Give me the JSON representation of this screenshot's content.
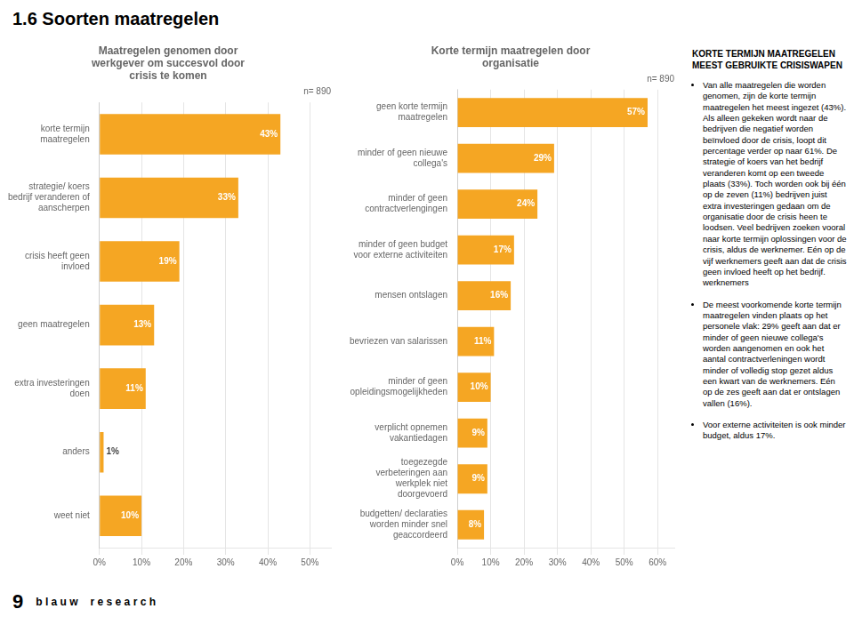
{
  "title": "1.6 Soorten maatregelen",
  "annotations": [
    "KORTE TERMIJN MAATREGELEN\nMEEST GEBRUIKTE CRISISWAPEN",
    "Van alle maatregelen die worden genomen, zijn de korte termijn maatregelen het meest ingezet (43%). Als alleen gekeken wordt naar de bedrijven die negatief worden beïnvloed door de crisis, loopt dit percentage verder op naar 61%. De strategie of koers van het bedrijf veranderen komt op een tweede plaats (33%). Toch worden ook bij één op de zeven (11%) bedrijven juist extra investeringen gedaan om de organisatie door de crisis heen te loodsen. Veel bedrijven zoeken vooral naar korte termijn oplossingen voor de crisis, aldus de werknemer. Eén op de vijf werknemers geeft aan dat de crisis geen invloed heeft op het bedrijf. werknemers",
    "De meest voorkomende korte termijn maatregelen vinden plaats op het personele vlak: 29% geeft aan dat er minder of geen nieuwe collega's worden aangenomen en ook het aantal contractverleningen wordt minder of volledig stop gezet aldus een kwart van de werknemers. Eén op de zes geeft aan dat er ontslagen vallen (16%).",
    "Voor externe activiteiten is ook minder budget, aldus 17%.",
    "9",
    "b l a u w",
    "r e s e a r c h"
  ],
  "chart_data": [
    {
      "type": "bar",
      "orientation": "horizontal",
      "title": "Maatregelen genomen door\nwerkgever om succesvol door\ncrisis te komen",
      "categories": [
        "korte termijn\nmaatregelen",
        "strategie/ koers\nbedrijf veranderen of\naanscherpen",
        "crisis heeft geen\ninvloed",
        "geen maatregelen",
        "extra investeringen\ndoen",
        "anders",
        "weet niet"
      ],
      "values": [
        43,
        33,
        19,
        13,
        11,
        1,
        10
      ],
      "value_labels": [
        "43%",
        "33%",
        "19%",
        "13%",
        "11%",
        "1%",
        "10%"
      ],
      "data_labels": true,
      "color": "#f5a623",
      "xlim": [
        0,
        55
      ],
      "xticks": [
        {
          "value": 0,
          "label": "0%"
        },
        {
          "value": 10,
          "label": "10%"
        },
        {
          "value": 20,
          "label": "20%"
        },
        {
          "value": 30,
          "label": "30%"
        },
        {
          "value": 40,
          "label": "40%"
        },
        {
          "value": 50,
          "label": "50%"
        }
      ],
      "grid": true,
      "annotations": [
        "n= 890"
      ]
    },
    {
      "type": "bar",
      "orientation": "horizontal",
      "title": "Korte termijn maatregelen door\norganisatie",
      "categories": [
        "geen korte termijn\nmaatregelen",
        "minder of geen nieuwe\ncollega's",
        "minder of geen\ncontractverlengingen",
        "minder of geen budget\nvoor externe activiteiten",
        "mensen ontslagen",
        "bevriezen van salarissen",
        "minder of geen\nopleidingsmogelijkheden",
        "verplicht opnemen\nvakantiedagen",
        "toegezegde\nverbeteringen aan\nwerkplek niet\ndoorgevoerd",
        "budgetten/ declaraties\nworden minder snel\ngeaccordeerd"
      ],
      "values": [
        57,
        29,
        24,
        17,
        16,
        11,
        10,
        9,
        9,
        8
      ],
      "value_labels": [
        "57%",
        "29%",
        "24%",
        "17%",
        "16%",
        "11%",
        "10%",
        "9%",
        "9%",
        "8%"
      ],
      "data_labels": true,
      "color": "#f5a623",
      "xlim": [
        0,
        65
      ],
      "xticks": [
        {
          "value": 0,
          "label": "0%"
        },
        {
          "value": 10,
          "label": "10%"
        },
        {
          "value": 20,
          "label": "20%"
        },
        {
          "value": 30,
          "label": "30%"
        },
        {
          "value": 40,
          "label": "40%"
        },
        {
          "value": 50,
          "label": "50%"
        },
        {
          "value": 60,
          "label": "60%"
        }
      ],
      "grid": true,
      "annotations": [
        "n= 890"
      ]
    }
  ]
}
